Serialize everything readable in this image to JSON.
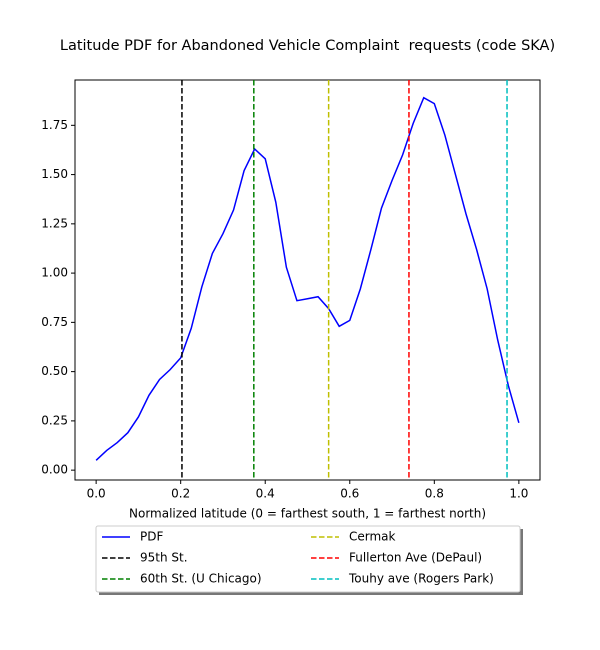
{
  "chart_data": {
    "type": "line",
    "title": "Latitude PDF for Abandoned Vehicle Complaint  requests (code SKA)",
    "x_label": "Normalized latitude (0 = farthest south, 1 = farthest north)",
    "xlim": [
      -0.05,
      1.05
    ],
    "ylim": [
      -0.05,
      1.98
    ],
    "xticks": [
      {
        "value": 0,
        "label": "0.0"
      },
      {
        "value": 0.2,
        "label": "0.2"
      },
      {
        "value": 0.4,
        "label": "0.4"
      },
      {
        "value": 0.6,
        "label": "0.6"
      },
      {
        "value": 0.8,
        "label": "0.8"
      },
      {
        "value": 1,
        "label": "1.0"
      }
    ],
    "yticks": [
      {
        "value": 0,
        "label": "0.00"
      },
      {
        "value": 0.25,
        "label": "0.25"
      },
      {
        "value": 0.5,
        "label": "0.50"
      },
      {
        "value": 0.75,
        "label": "0.75"
      },
      {
        "value": 1,
        "label": "1.00"
      },
      {
        "value": 1.25,
        "label": "1.25"
      },
      {
        "value": 1.5,
        "label": "1.50"
      },
      {
        "value": 1.75,
        "label": "1.75"
      }
    ],
    "series": [
      {
        "name": "PDF",
        "color": "#0000ff",
        "x": [
          0,
          0.025,
          0.05,
          0.075,
          0.1,
          0.125,
          0.15,
          0.175,
          0.2,
          0.225,
          0.25,
          0.275,
          0.3,
          0.325,
          0.35,
          0.375,
          0.4,
          0.425,
          0.45,
          0.475,
          0.5,
          0.525,
          0.55,
          0.575,
          0.6,
          0.625,
          0.65,
          0.675,
          0.7,
          0.725,
          0.75,
          0.775,
          0.8,
          0.825,
          0.85,
          0.875,
          0.9,
          0.925,
          0.95,
          0.975,
          1
        ],
        "values": [
          0.05,
          0.1,
          0.14,
          0.19,
          0.27,
          0.38,
          0.46,
          0.51,
          0.57,
          0.72,
          0.93,
          1.1,
          1.2,
          1.32,
          1.52,
          1.63,
          1.58,
          1.36,
          1.03,
          0.86,
          0.87,
          0.88,
          0.82,
          0.73,
          0.76,
          0.92,
          1.12,
          1.33,
          1.47,
          1.6,
          1.76,
          1.89,
          1.86,
          1.7,
          1.5,
          1.3,
          1.12,
          0.92,
          0.66,
          0.43,
          0.24
        ]
      }
    ],
    "vlines": [
      {
        "name": "95th St.",
        "color": "#000000",
        "x": 0.203
      },
      {
        "name": "60th St. (U Chicago)",
        "color": "#008000",
        "x": 0.373
      },
      {
        "name": "Cermak",
        "color": "#bfbf00",
        "x": 0.55
      },
      {
        "name": "Fullerton Ave (DePaul)",
        "color": "#ff0000",
        "x": 0.74
      },
      {
        "name": "Touhy ave (Rogers Park)",
        "color": "#00bfbf",
        "x": 0.972
      }
    ]
  }
}
